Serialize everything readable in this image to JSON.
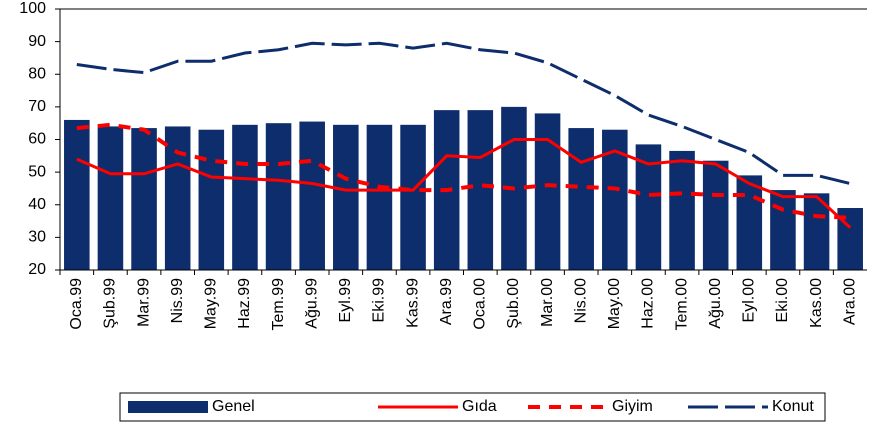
{
  "chart_data": {
    "type": "bar_line",
    "categories": [
      "Oca.99",
      "Şub.99",
      "Mar.99",
      "Nis.99",
      "May.99",
      "Haz.99",
      "Tem.99",
      "Ağu.99",
      "Eyl.99",
      "Eki.99",
      "Kas.99",
      "Ara.99",
      "Oca.00",
      "Şub.00",
      "Mar.00",
      "Nis.00",
      "May.00",
      "Haz.00",
      "Tem.00",
      "Ağu.00",
      "Eyl.00",
      "Eki.00",
      "Kas.00",
      "Ara.00"
    ],
    "series": [
      {
        "name": "Genel",
        "kind": "bar",
        "color": "#0d2d6c",
        "values": [
          66,
          64,
          63.5,
          64,
          63,
          64.5,
          65,
          65.5,
          64.5,
          64.5,
          64.5,
          69,
          69,
          70,
          68,
          63.5,
          63,
          58.5,
          56.5,
          53.5,
          49,
          44.5,
          43.5,
          39
        ]
      },
      {
        "name": "Gıda",
        "kind": "line",
        "color": "#ff0000",
        "values": [
          54,
          49.5,
          49.5,
          52.5,
          48.5,
          48,
          47.5,
          46.5,
          44.5,
          44.5,
          44.5,
          55,
          54.5,
          60,
          60,
          53,
          56.5,
          52.5,
          53.5,
          52.5,
          46.5,
          42.5,
          42.5,
          33
        ]
      },
      {
        "name": "Giyim",
        "kind": "dashed",
        "color": "#ff0000",
        "values": [
          63.5,
          64.5,
          63,
          56,
          53.5,
          52.5,
          52.5,
          53.5,
          48,
          45.5,
          44.5,
          44.5,
          46,
          45,
          46,
          45.5,
          45,
          43,
          43.5,
          43,
          43,
          38.5,
          36.5,
          36
        ]
      },
      {
        "name": "Konut",
        "kind": "longdash",
        "color": "#0d2d6c",
        "values": [
          83,
          81.5,
          80.5,
          84,
          84,
          86.5,
          87.5,
          89.5,
          89,
          89.5,
          88,
          89.5,
          87.5,
          86.5,
          83.5,
          78.5,
          73.5,
          67.5,
          64,
          60,
          56,
          49,
          49,
          46.5
        ]
      }
    ],
    "ylim": [
      20,
      100
    ],
    "yticks": [
      20,
      30,
      40,
      50,
      60,
      70,
      80,
      90,
      100
    ],
    "grid": false,
    "legend": "bottom"
  }
}
